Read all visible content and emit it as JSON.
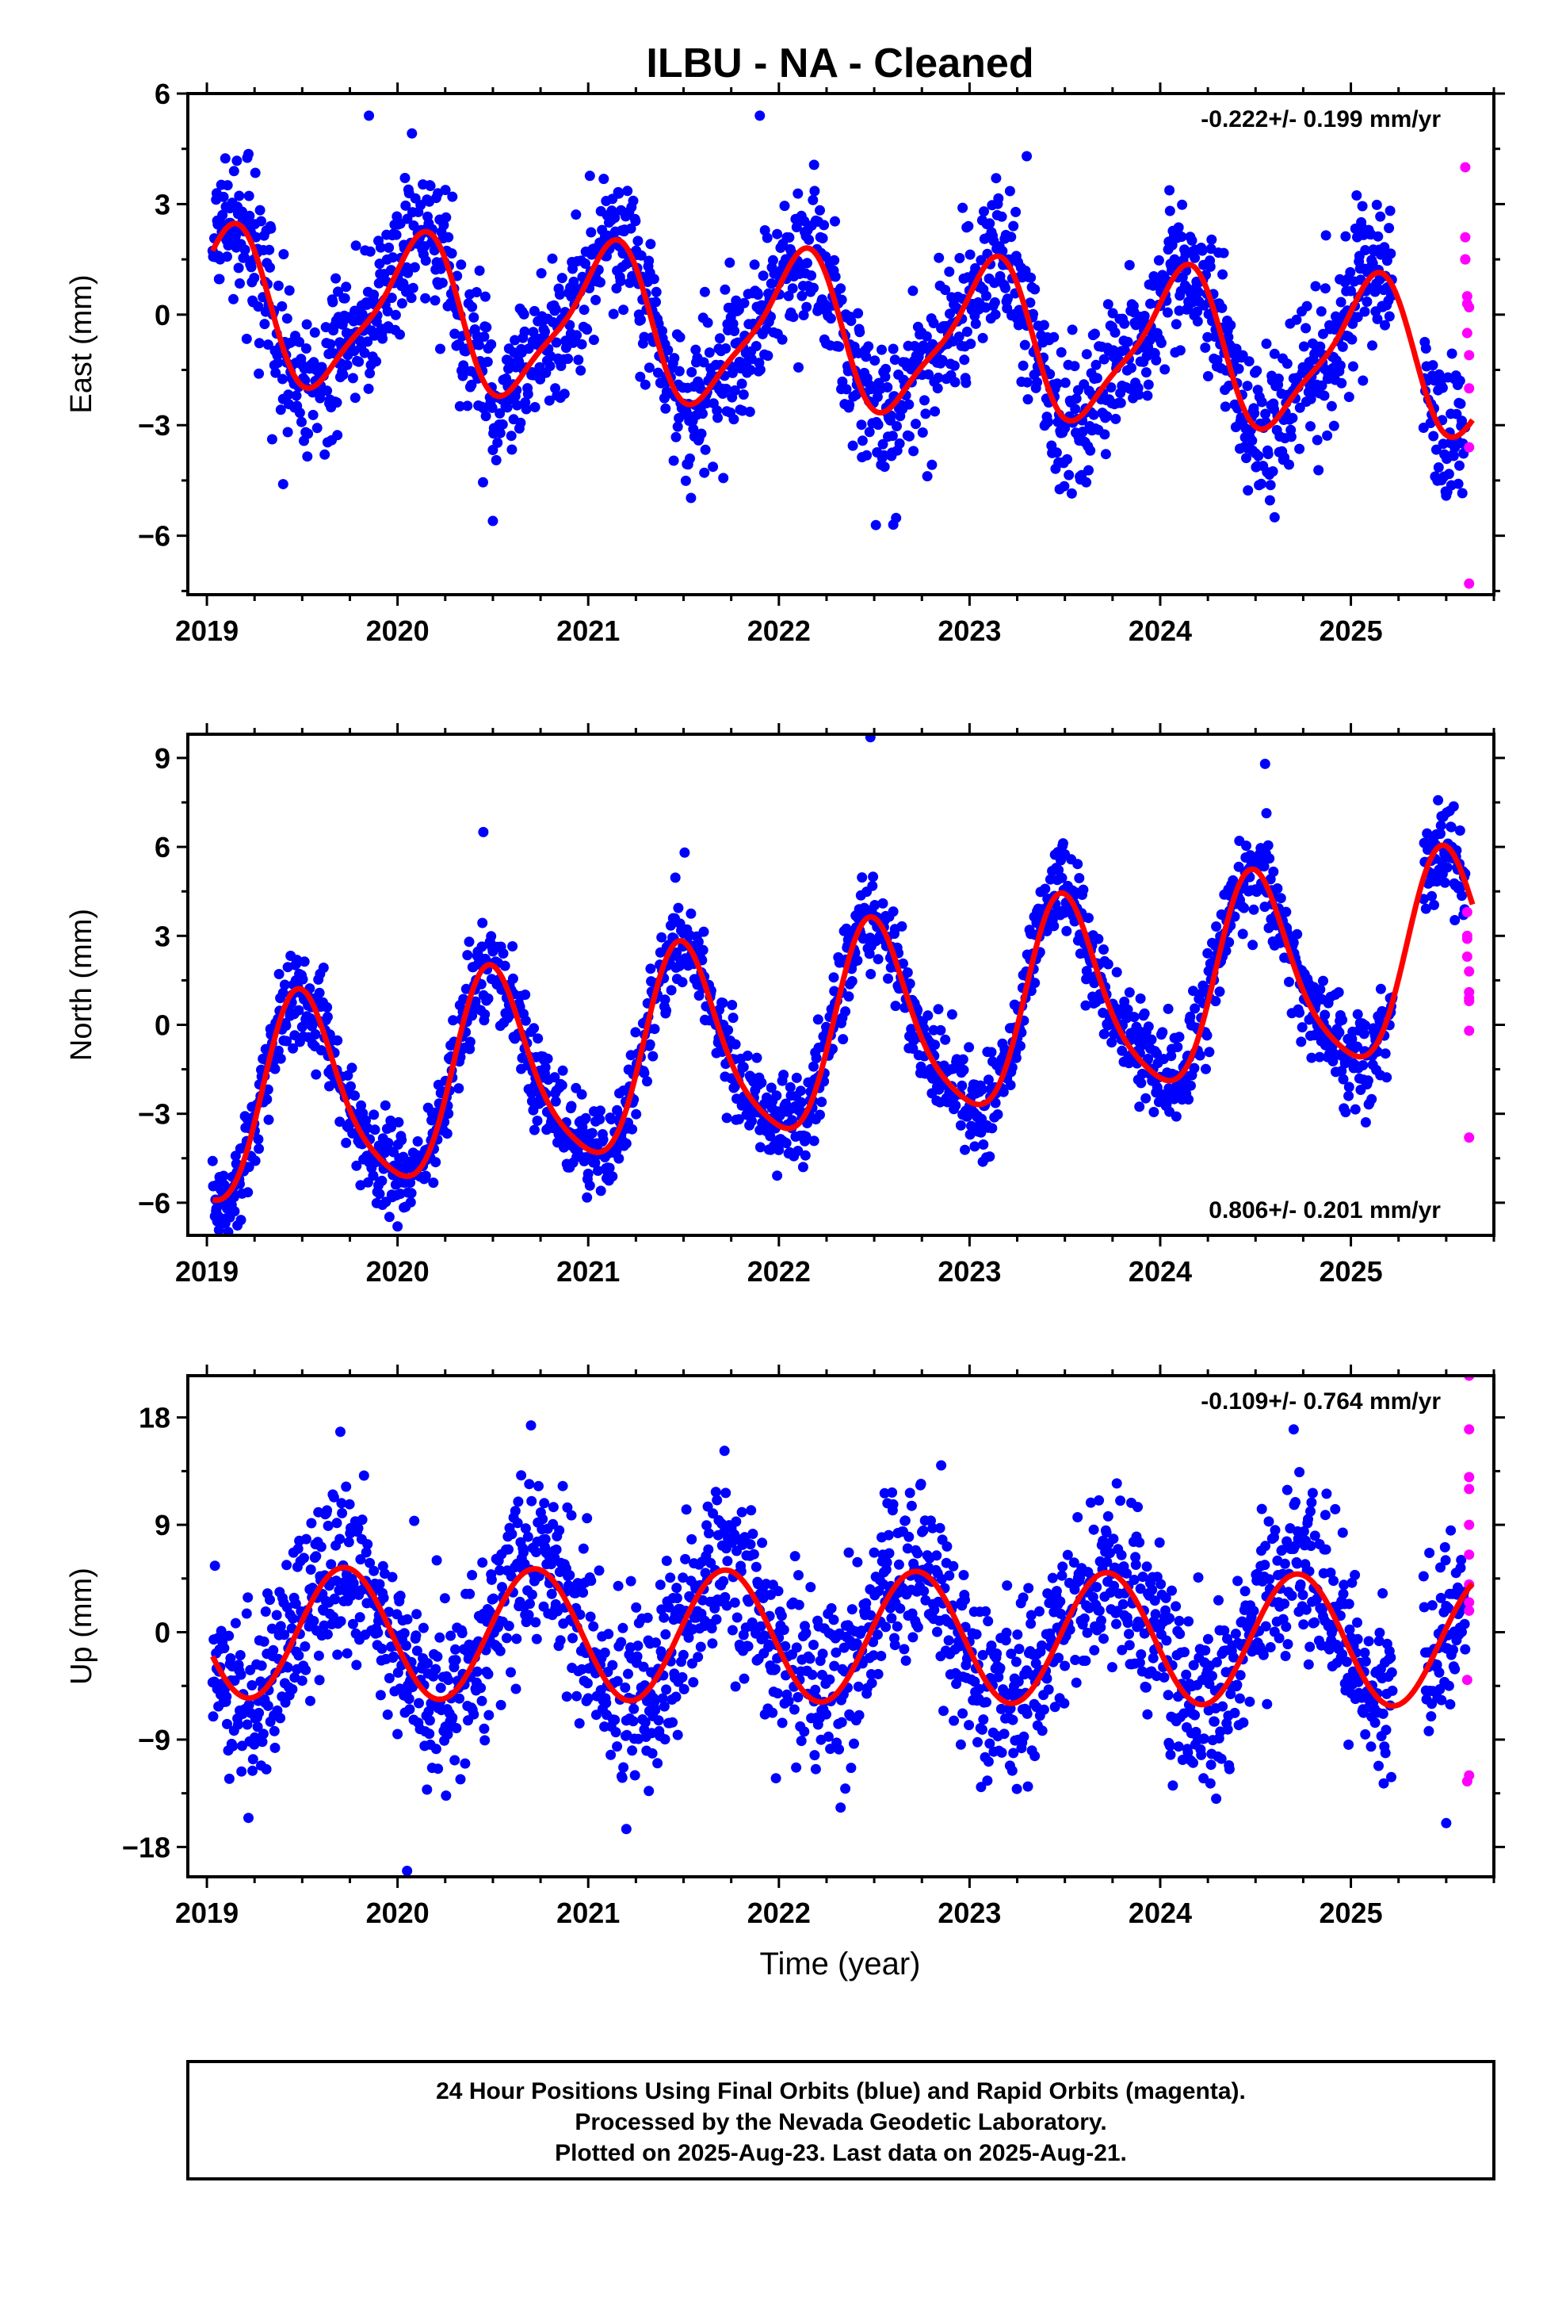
{
  "title": "ILBU  - NA - Cleaned",
  "colors": {
    "final": "#0000ff",
    "rapid": "#ff00ff",
    "model": "#ff0000",
    "frame": "#000000"
  },
  "chart_data": [
    {
      "type": "scatter",
      "component": "east",
      "ylabel": "East (mm)",
      "xlabel": "",
      "xlim": [
        2018.9,
        2025.75
      ],
      "ylim": [
        -7.6,
        6
      ],
      "yticks": [
        -6,
        -3,
        0,
        3,
        6
      ],
      "ytick_labels": [
        "−6",
        "−3",
        "0",
        "3",
        "6"
      ],
      "xticks": [
        2019,
        2020,
        2021,
        2022,
        2023,
        2024,
        2025
      ],
      "xtick_labels": [
        "2019",
        "2020",
        "2021",
        "2022",
        "2023",
        "2024",
        "2025"
      ],
      "rate_text": "-0.222+/- 0.199 mm/yr",
      "rate_position": "top-right",
      "series": [
        {
          "name": "Final Orbits",
          "model": {
            "amp": 2.0,
            "phase_peak": 0.1,
            "semi": 0.5,
            "semi_peak": 0.2,
            "trend": -0.222,
            "offset": 0.2
          },
          "scatter_sd": 1.0,
          "outlier_x": [
            2019.4,
            2020.5,
            2021.9,
            2022.6,
            2024.6,
            2019.85,
            2023.3
          ],
          "outlier_y": [
            -4.6,
            -5.6,
            5.4,
            -5.7,
            -5.5,
            5.4,
            4.3
          ]
        },
        {
          "name": "Rapid Orbits",
          "x": [
            2025.6,
            2025.6,
            2025.6,
            2025.6,
            2025.61,
            2025.61,
            2025.61,
            2025.62,
            2025.62,
            2025.62,
            2025.62,
            2025.62
          ],
          "y": [
            4.0,
            2.1,
            1.5,
            1.5,
            0.5,
            0.3,
            -0.5,
            -1.1,
            -2.0,
            -3.6,
            -7.3,
            0.2
          ]
        }
      ]
    },
    {
      "type": "scatter",
      "component": "north",
      "ylabel": "North (mm)",
      "xlabel": "",
      "xlim": [
        2018.9,
        2025.75
      ],
      "ylim": [
        -7.1,
        9.8
      ],
      "yticks": [
        -6,
        -3,
        0,
        3,
        6,
        9
      ],
      "ytick_labels": [
        "−6",
        "−3",
        "0",
        "3",
        "6",
        "9"
      ],
      "xticks": [
        2019,
        2020,
        2021,
        2022,
        2023,
        2024,
        2025
      ],
      "xtick_labels": [
        "2019",
        "2020",
        "2021",
        "2022",
        "2023",
        "2024",
        "2025"
      ],
      "rate_text": "0.806+/- 0.201 mm/yr",
      "rate_position": "bottom-right",
      "series": [
        {
          "name": "Final Orbits",
          "model": {
            "amp": 3.3,
            "phase_peak": 0.5,
            "semi": 0.6,
            "semi_peak": 0.45,
            "trend": 0.806,
            "offset": -3.0
          },
          "scatter_sd": 0.8,
          "outlier_x": [
            2022.48,
            2024.55,
            2020.0,
            2019.05,
            2020.45
          ],
          "outlier_y": [
            9.7,
            8.8,
            -6.8,
            -6.2,
            6.5
          ]
        },
        {
          "name": "Rapid Orbits",
          "x": [
            2025.61,
            2025.61,
            2025.61,
            2025.61,
            2025.62,
            2025.62,
            2025.62,
            2025.62,
            2025.62,
            2025.62
          ],
          "y": [
            3.8,
            3.0,
            2.9,
            2.3,
            1.8,
            1.1,
            0.9,
            0.8,
            -0.2,
            -3.8
          ]
        }
      ]
    },
    {
      "type": "scatter",
      "component": "up",
      "ylabel": "Up (mm)",
      "xlabel": "Time (year)",
      "xlim": [
        2018.9,
        2025.75
      ],
      "ylim": [
        -20.5,
        21.5
      ],
      "yticks": [
        -18,
        -9,
        0,
        9,
        18
      ],
      "ytick_labels": [
        "−18",
        "−9",
        "0",
        "9",
        "18"
      ],
      "xticks": [
        2019,
        2020,
        2021,
        2022,
        2023,
        2024,
        2025
      ],
      "xtick_labels": [
        "2019",
        "2020",
        "2021",
        "2022",
        "2023",
        "2024",
        "2025"
      ],
      "rate_text": "-0.109+/- 0.764 mm/yr",
      "rate_position": "top-right",
      "series": [
        {
          "name": "Final Orbits",
          "model": {
            "amp": 5.5,
            "phase_peak": 0.72,
            "semi": 0.0,
            "semi_peak": 0.0,
            "trend": -0.109,
            "offset": 0.0
          },
          "scatter_sd": 3.8,
          "outlier_x": [
            2020.05,
            2021.2,
            2024.7,
            2019.7,
            2025.5
          ],
          "outlier_y": [
            -20.0,
            -16.5,
            17.0,
            16.8,
            -16.0
          ]
        },
        {
          "name": "Rapid Orbits",
          "x": [
            2025.62,
            2025.62,
            2025.62,
            2025.62,
            2025.62,
            2025.62,
            2025.62,
            2025.62,
            2025.62,
            2025.61,
            2025.61,
            2025.62
          ],
          "y": [
            21.5,
            17.0,
            13.0,
            12.0,
            9.0,
            6.5,
            4.0,
            2.5,
            1.8,
            -4.0,
            -12.5,
            -12.0
          ]
        }
      ]
    }
  ],
  "footer": {
    "line1": "24 Hour Positions Using Final Orbits (blue) and Rapid Orbits (magenta).",
    "line2": "Processed by the Nevada Geodetic Laboratory.",
    "line3": "Plotted on 2025-Aug-23. Last data on 2025-Aug-21."
  }
}
